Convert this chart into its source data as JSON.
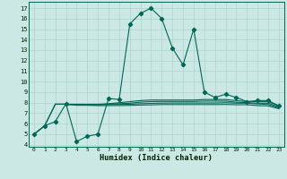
{
  "xlabel": "Humidex (Indice chaleur)",
  "bg_color": "#cce8e4",
  "grid_color": "#aad4cc",
  "line_color": "#006655",
  "xlim": [
    -0.5,
    23.5
  ],
  "ylim": [
    3.8,
    17.6
  ],
  "yticks": [
    4,
    5,
    6,
    7,
    8,
    9,
    10,
    11,
    12,
    13,
    14,
    15,
    16,
    17
  ],
  "xticks": [
    0,
    1,
    2,
    3,
    4,
    5,
    6,
    7,
    8,
    9,
    10,
    11,
    12,
    13,
    14,
    15,
    16,
    17,
    18,
    19,
    20,
    21,
    22,
    23
  ],
  "line1_x": [
    0,
    1,
    2,
    3,
    4,
    5,
    6,
    7,
    8,
    9,
    10,
    11,
    12,
    13,
    14,
    15,
    16,
    17,
    18,
    19,
    20,
    21,
    22,
    23
  ],
  "line1_y": [
    5.0,
    5.8,
    6.2,
    7.9,
    4.3,
    4.8,
    5.0,
    8.4,
    8.3,
    15.5,
    16.5,
    17.0,
    16.0,
    13.2,
    11.6,
    15.0,
    9.0,
    8.5,
    8.8,
    8.5,
    8.1,
    8.2,
    8.2,
    7.7
  ],
  "line2_x": [
    0,
    1,
    2,
    3,
    4,
    5,
    6,
    7,
    8,
    9,
    10,
    11,
    12,
    13,
    14,
    15,
    16,
    17,
    18,
    19,
    20,
    21,
    22,
    23
  ],
  "line2_y": [
    5.0,
    5.8,
    7.85,
    7.85,
    7.85,
    7.85,
    7.85,
    7.9,
    8.0,
    8.1,
    8.2,
    8.25,
    8.25,
    8.25,
    8.25,
    8.25,
    8.3,
    8.3,
    8.3,
    8.2,
    8.1,
    8.1,
    8.1,
    7.7
  ],
  "line3_x": [
    0,
    1,
    2,
    3,
    4,
    5,
    6,
    7,
    8,
    9,
    10,
    11,
    12,
    13,
    14,
    15,
    16,
    17,
    18,
    19,
    20,
    21,
    22,
    23
  ],
  "line3_y": [
    5.0,
    5.8,
    7.85,
    7.85,
    7.82,
    7.82,
    7.82,
    7.85,
    7.9,
    7.95,
    8.05,
    8.1,
    8.12,
    8.12,
    8.12,
    8.12,
    8.15,
    8.15,
    8.15,
    8.05,
    8.0,
    7.95,
    7.95,
    7.6
  ],
  "line4_x": [
    2,
    3,
    4,
    5,
    6,
    7,
    8,
    9,
    10,
    11,
    12,
    13,
    14,
    15,
    16,
    17,
    18,
    19,
    20,
    21,
    22,
    23
  ],
  "line4_y": [
    7.85,
    7.85,
    7.8,
    7.8,
    7.8,
    7.82,
    7.83,
    7.85,
    7.9,
    7.93,
    7.96,
    7.97,
    7.97,
    7.97,
    7.97,
    7.97,
    8.0,
    7.95,
    7.95,
    7.88,
    7.83,
    7.5
  ],
  "line5_x": [
    2,
    3,
    4,
    5,
    6,
    7,
    8,
    9,
    10,
    11,
    12,
    13,
    14,
    15,
    16,
    17,
    18,
    19,
    20,
    21,
    22,
    23
  ],
  "line5_y": [
    7.85,
    7.85,
    7.75,
    7.75,
    7.72,
    7.72,
    7.73,
    7.74,
    7.77,
    7.79,
    7.82,
    7.82,
    7.82,
    7.82,
    7.82,
    7.82,
    7.83,
    7.8,
    7.8,
    7.72,
    7.69,
    7.42
  ]
}
